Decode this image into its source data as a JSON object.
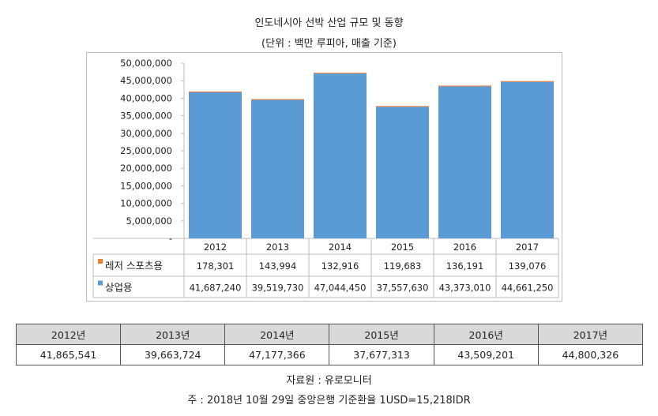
{
  "title": "인도네시아 선박 산업 규모 및 동향",
  "subtitle": "(단위 : 백만 루피아, 매출 기준)",
  "colors": {
    "bar": "#5b9bd5",
    "leisure": "#ed7d31",
    "commercial": "#5b9bd5",
    "summary_header_bg": "#d9d9d9"
  },
  "chart_data": {
    "type": "bar",
    "stacked": true,
    "categories": [
      "2012",
      "2013",
      "2014",
      "2015",
      "2016",
      "2017"
    ],
    "series": [
      {
        "name": "상업용",
        "values": [
          41687240,
          39519730,
          47044450,
          37557630,
          43373010,
          44661250
        ],
        "value_labels": [
          "41,687,240",
          "39,519,730",
          "47,044,450",
          "37,557,630",
          "43,373,010",
          "44,661,250"
        ]
      },
      {
        "name": "레저 스포츠용",
        "values": [
          178301,
          143994,
          132916,
          119683,
          136191,
          139076
        ],
        "value_labels": [
          "178,301",
          "143,994",
          "132,916",
          "119,683",
          "136,191",
          "139,076"
        ]
      }
    ],
    "ylim": [
      0,
      50000000
    ],
    "yticks": [
      "-",
      "5,000,000",
      "10,000,000",
      "15,000,000",
      "20,000,000",
      "25,000,000",
      "30,000,000",
      "35,000,000",
      "40,000,000",
      "45,000,000",
      "50,000,000"
    ],
    "legend": "data table rows",
    "grid": false
  },
  "summary_table": {
    "headers": [
      "2012년",
      "2013년",
      "2014년",
      "2015년",
      "2016년",
      "2017년"
    ],
    "values": [
      "41,865,541",
      "39,663,724",
      "47,177,366",
      "37,677,313",
      "43,509,201",
      "44,800,326"
    ]
  },
  "source": "자료원 : 유로모니터",
  "footnote": "주 : 2018년 10월 29일 중앙은행 기준환율 1USD=15,218IDR"
}
